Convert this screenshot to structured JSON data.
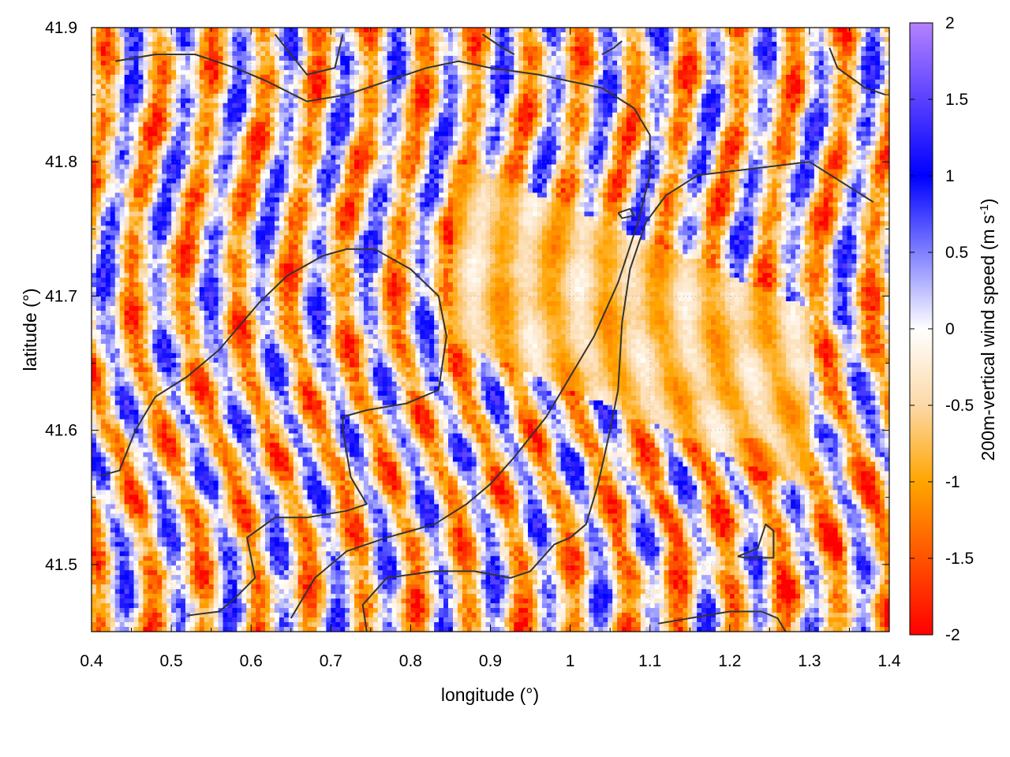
{
  "chart_data": {
    "type": "heatmap",
    "title": "",
    "xlabel": "longitude (°)",
    "ylabel": "latitude (°)",
    "colorbar_label": {
      "text": "200m-vertical wind speed (m s",
      "sup": "-1",
      "close": ")"
    },
    "xlim": [
      0.4,
      1.4
    ],
    "ylim": [
      41.45,
      41.9
    ],
    "xticks": [
      "0.4",
      "0.5",
      "0.6",
      "0.7",
      "0.8",
      "0.9",
      "1",
      "1.1",
      "1.2",
      "1.3",
      "1.4"
    ],
    "xtick_values": [
      0.4,
      0.5,
      0.6,
      0.7,
      0.8,
      0.9,
      1.0,
      1.1,
      1.2,
      1.3,
      1.4
    ],
    "yticks": [
      "41.5",
      "41.6",
      "41.7",
      "41.8",
      "41.9"
    ],
    "ytick_values": [
      41.5,
      41.6,
      41.7,
      41.8,
      41.9
    ],
    "colorbar_range": [
      -2,
      2
    ],
    "colorbar_ticks": [
      "2",
      "1.5",
      "1",
      "0.5",
      "0",
      "-0.5",
      "-1",
      "-1.5",
      "-2"
    ],
    "colorbar_tick_values": [
      2,
      1.5,
      1,
      0.5,
      0,
      -0.5,
      -1,
      -1.5,
      -2
    ],
    "colorscale": [
      {
        "value": -2.0,
        "color": "#ff0000"
      },
      {
        "value": -1.0,
        "color": "#ffa500"
      },
      {
        "value": -0.5,
        "color": "#fcd9a8"
      },
      {
        "value": 0.0,
        "color": "#ffffff"
      },
      {
        "value": 0.5,
        "color": "#8080ff"
      },
      {
        "value": 1.0,
        "color": "#0000ff"
      },
      {
        "value": 2.0,
        "color": "#b482ff"
      }
    ],
    "grid": true,
    "contour_color": "#333333",
    "contours": [
      [
        [
          0.41,
          41.566
        ],
        [
          0.435,
          41.57
        ],
        [
          0.455,
          41.6
        ],
        [
          0.48,
          41.625
        ],
        [
          0.52,
          41.64
        ],
        [
          0.56,
          41.66
        ],
        [
          0.61,
          41.695
        ],
        [
          0.645,
          41.715
        ],
        [
          0.69,
          41.73
        ],
        [
          0.72,
          41.735
        ],
        [
          0.755,
          41.735
        ],
        [
          0.8,
          41.72
        ],
        [
          0.835,
          41.7
        ],
        [
          0.845,
          41.67
        ],
        [
          0.835,
          41.63
        ],
        [
          0.795,
          41.62
        ],
        [
          0.745,
          41.615
        ],
        [
          0.715,
          41.61
        ],
        [
          0.715,
          41.6
        ],
        [
          0.725,
          41.565
        ],
        [
          0.745,
          41.545
        ],
        [
          0.72,
          41.54
        ],
        [
          0.67,
          41.535
        ],
        [
          0.63,
          41.535
        ],
        [
          0.595,
          41.52
        ],
        [
          0.605,
          41.49
        ],
        [
          0.58,
          41.475
        ],
        [
          0.56,
          41.465
        ],
        [
          0.52,
          41.462
        ]
      ],
      [
        [
          0.745,
          41.45
        ],
        [
          0.74,
          41.47
        ],
        [
          0.77,
          41.49
        ],
        [
          0.83,
          41.495
        ],
        [
          0.88,
          41.495
        ],
        [
          0.925,
          41.49
        ],
        [
          0.95,
          41.495
        ],
        [
          0.98,
          41.515
        ],
        [
          1.0,
          41.52
        ],
        [
          1.02,
          41.53
        ],
        [
          1.035,
          41.56
        ],
        [
          1.05,
          41.6
        ],
        [
          1.06,
          41.63
        ],
        [
          1.065,
          41.68
        ],
        [
          1.075,
          41.72
        ],
        [
          1.095,
          41.755
        ],
        [
          1.12,
          41.775
        ],
        [
          1.16,
          41.79
        ],
        [
          1.23,
          41.795
        ],
        [
          1.3,
          41.8
        ],
        [
          1.38,
          41.77
        ]
      ],
      [
        [
          0.65,
          41.46
        ],
        [
          0.68,
          41.49
        ],
        [
          0.72,
          41.51
        ],
        [
          0.77,
          41.52
        ],
        [
          0.83,
          41.53
        ],
        [
          0.87,
          41.545
        ],
        [
          0.9,
          41.56
        ],
        [
          0.93,
          41.58
        ],
        [
          0.97,
          41.61
        ],
        [
          1.0,
          41.64
        ],
        [
          1.03,
          41.67
        ],
        [
          1.06,
          41.71
        ],
        [
          1.085,
          41.755
        ],
        [
          1.1,
          41.79
        ],
        [
          1.1,
          41.82
        ],
        [
          1.08,
          41.84
        ],
        [
          1.04,
          41.855
        ],
        [
          1.0,
          41.86
        ],
        [
          0.96,
          41.865
        ],
        [
          0.9,
          41.87
        ],
        [
          0.86,
          41.875
        ],
        [
          0.82,
          41.87
        ],
        [
          0.77,
          41.86
        ],
        [
          0.72,
          41.85
        ],
        [
          0.67,
          41.845
        ],
        [
          0.62,
          41.86
        ],
        [
          0.58,
          41.87
        ],
        [
          0.53,
          41.88
        ],
        [
          0.48,
          41.88
        ],
        [
          0.43,
          41.875
        ]
      ],
      [
        [
          1.21,
          41.506
        ],
        [
          1.235,
          41.512
        ],
        [
          1.245,
          41.53
        ],
        [
          1.255,
          41.525
        ],
        [
          1.255,
          41.505
        ],
        [
          1.22,
          41.505
        ],
        [
          1.21,
          41.506
        ]
      ],
      [
        [
          1.11,
          41.456
        ],
        [
          1.15,
          41.46
        ],
        [
          1.2,
          41.465
        ],
        [
          1.24,
          41.465
        ],
        [
          1.26,
          41.46
        ],
        [
          1.27,
          41.45
        ]
      ],
      [
        [
          1.325,
          41.885
        ],
        [
          1.335,
          41.87
        ],
        [
          1.37,
          41.855
        ],
        [
          1.395,
          41.85
        ]
      ],
      [
        [
          0.89,
          41.895
        ],
        [
          0.915,
          41.885
        ],
        [
          0.93,
          41.88
        ]
      ],
      [
        [
          0.63,
          41.895
        ],
        [
          0.65,
          41.88
        ],
        [
          0.67,
          41.865
        ],
        [
          0.705,
          41.87
        ],
        [
          0.715,
          41.895
        ]
      ],
      [
        [
          1.04,
          41.88
        ],
        [
          1.055,
          41.885
        ],
        [
          1.065,
          41.89
        ]
      ],
      [
        [
          1.06,
          41.762
        ],
        [
          1.075,
          41.765
        ],
        [
          1.08,
          41.76
        ],
        [
          1.065,
          41.758
        ],
        [
          1.06,
          41.762
        ]
      ]
    ]
  }
}
